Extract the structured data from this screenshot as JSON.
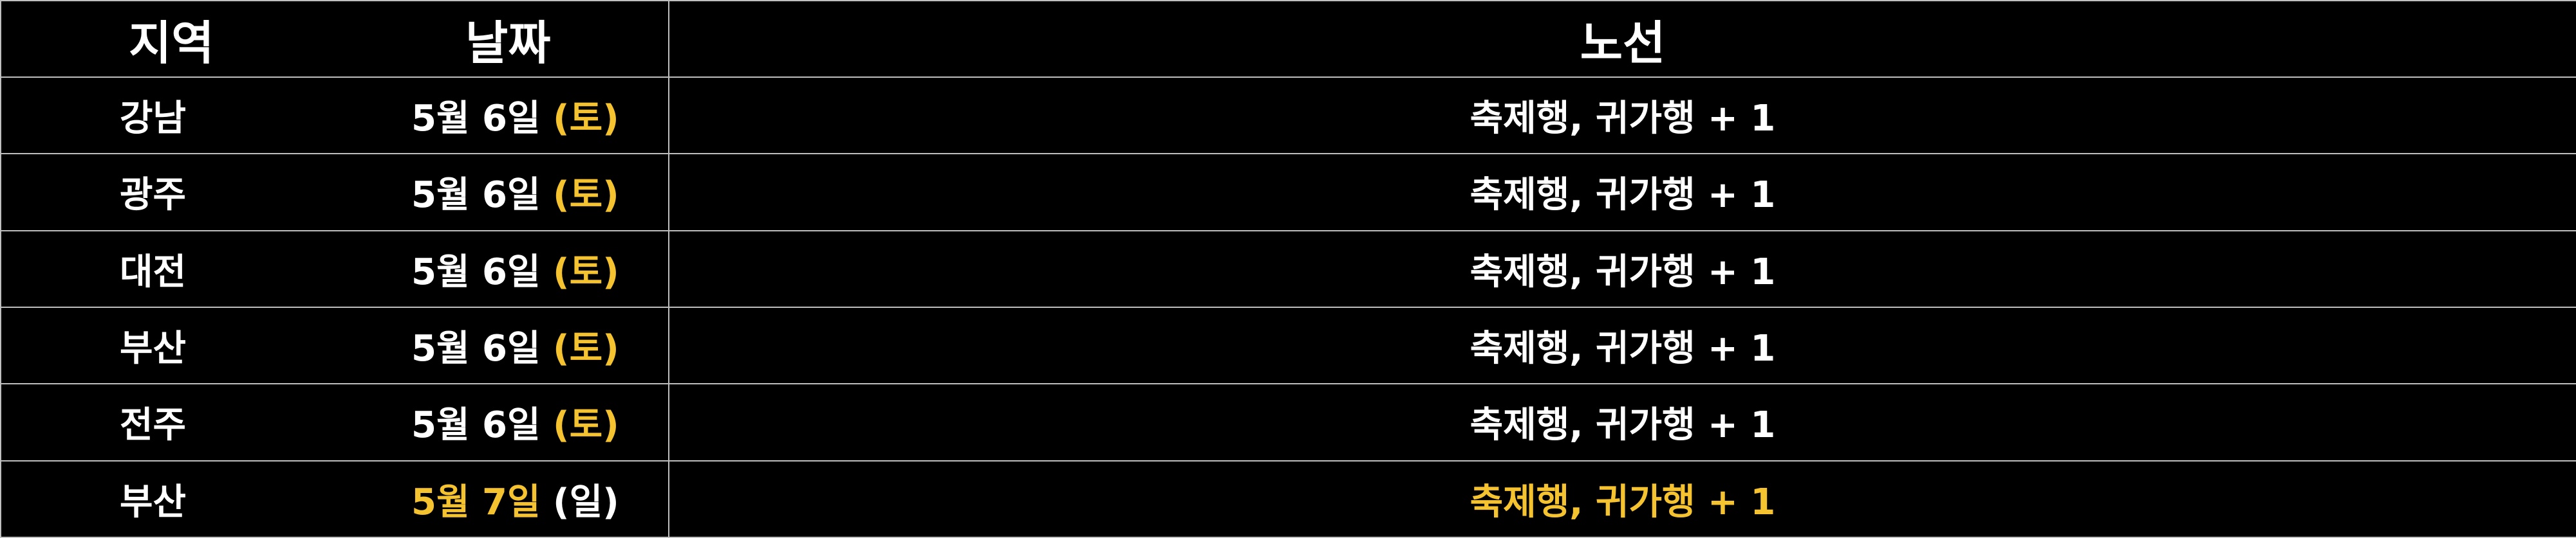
{
  "header": {
    "region": "지역",
    "date": "날짜",
    "route": "노선"
  },
  "colors": {
    "background": "#000000",
    "text": "#ffffff",
    "highlight": "#f5c230",
    "border": "#bfbfbf"
  },
  "rows": [
    {
      "region": "강남",
      "date_main": "5월 6일",
      "date_day": "(토)",
      "route": "축제행, 귀가행 + 1"
    },
    {
      "region": "광주",
      "date_main": "5월 6일",
      "date_day": "(토)",
      "route": "축제행, 귀가행 + 1"
    },
    {
      "region": "대전",
      "date_main": "5월 6일",
      "date_day": "(토)",
      "route": "축제행, 귀가행 + 1"
    },
    {
      "region": "부산",
      "date_main": "5월 6일",
      "date_day": "(토)",
      "route": "축제행, 귀가행 + 1"
    },
    {
      "region": "전주",
      "date_main": "5월 6일",
      "date_day": "(토)",
      "route": "축제행, 귀가행 + 1"
    },
    {
      "region": "부산",
      "date_main": "5월 7일",
      "date_day": "(일)",
      "route": "축제행, 귀가행 + 1"
    }
  ]
}
